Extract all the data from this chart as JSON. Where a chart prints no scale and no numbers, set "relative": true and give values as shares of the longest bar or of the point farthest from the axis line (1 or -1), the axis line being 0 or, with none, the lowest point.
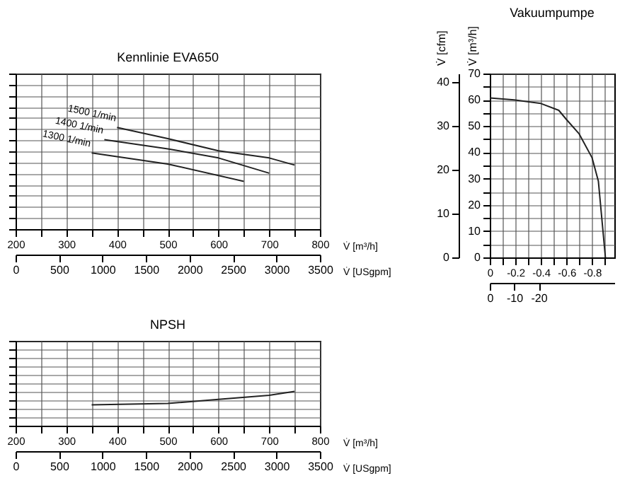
{
  "chart_data": [
    {
      "type": "line",
      "title": "Kennlinie EVA650",
      "xlabel": "V̇ [m³/h]",
      "x2label": "V̇ [USgpm]",
      "relative": true,
      "xlim": [
        200,
        800
      ],
      "xticks": [
        200,
        {
          "value": 250,
          "label": null
        },
        300,
        {
          "value": 350,
          "label": null
        },
        400,
        {
          "value": 450,
          "label": null
        },
        500,
        {
          "value": 550,
          "label": null
        },
        600,
        {
          "value": 650,
          "label": null
        },
        700,
        {
          "value": 750,
          "label": null
        },
        800
      ],
      "x2lim": [
        0,
        3500
      ],
      "x2ticks": [
        0,
        500,
        1000,
        1500,
        2000,
        2500,
        3000,
        3500
      ],
      "grid": true,
      "legend": false,
      "series": [
        {
          "name": "1500 1/min",
          "color": "#222222",
          "x": [
            400,
            500,
            600,
            700,
            750
          ],
          "values": [
            1.0,
            0.89,
            0.77,
            0.7,
            0.63
          ]
        },
        {
          "name": "1400 1/min",
          "color": "#222222",
          "x": [
            375,
            500,
            600,
            700
          ],
          "values": [
            0.88,
            0.79,
            0.7,
            0.55
          ]
        },
        {
          "name": "1300 1/min",
          "color": "#222222",
          "x": [
            350,
            500,
            650
          ],
          "values": [
            0.75,
            0.64,
            0.47
          ]
        }
      ]
    },
    {
      "type": "line",
      "title": "Vakuumpumpe",
      "ylabel": "V̇ [m³/h]",
      "y2label": "V̇ [cfm]",
      "xlim": [
        0,
        -0.975
      ],
      "xticks": [
        0,
        {
          "value": -0.1,
          "label": null
        },
        -0.2,
        {
          "value": -0.3,
          "label": null
        },
        -0.4,
        {
          "value": -0.5,
          "label": null
        },
        -0.6,
        {
          "value": -0.7,
          "label": null
        },
        -0.8,
        {
          "value": -0.9,
          "label": null
        }
      ],
      "x2lim": [
        0,
        -51
      ],
      "x2ticks": [
        0,
        -10,
        -20
      ],
      "ylim": [
        0,
        70
      ],
      "yticks": [
        0,
        {
          "value": 5,
          "label": null
        },
        10,
        {
          "value": 15,
          "label": null
        },
        20,
        {
          "value": 25,
          "label": null
        },
        30,
        {
          "value": 35,
          "label": null
        },
        40,
        {
          "value": 45,
          "label": null
        },
        50,
        {
          "value": 55,
          "label": null
        },
        60,
        {
          "value": 65,
          "label": null
        },
        70
      ],
      "y2lim": [
        0,
        41.9
      ],
      "y2ticks": [
        0,
        10,
        20,
        30,
        40
      ],
      "grid": true,
      "legend": false,
      "series": [
        {
          "color": "#222222",
          "x": [
            0,
            -0.19,
            -0.4,
            -0.54,
            -0.6,
            -0.7,
            -0.8,
            -0.85,
            -0.905
          ],
          "values": [
            60.7,
            60,
            58.6,
            56,
            52.5,
            47,
            38,
            29,
            0
          ]
        }
      ]
    },
    {
      "type": "line",
      "title": "NPSH",
      "xlabel": "V̇ [m³/h]",
      "x2label": "V̇ [USgpm]",
      "relative": true,
      "xlim": [
        200,
        800
      ],
      "xticks": [
        200,
        {
          "value": 250,
          "label": null
        },
        300,
        {
          "value": 350,
          "label": null
        },
        400,
        {
          "value": 450,
          "label": null
        },
        500,
        {
          "value": 550,
          "label": null
        },
        600,
        {
          "value": 650,
          "label": null
        },
        700,
        {
          "value": 750,
          "label": null
        },
        800
      ],
      "x2lim": [
        0,
        3500
      ],
      "x2ticks": [
        0,
        500,
        1000,
        1500,
        2000,
        2500,
        3000,
        3500
      ],
      "grid": true,
      "legend": false,
      "series": [
        {
          "color": "#222222",
          "x": [
            350,
            500,
            600,
            700,
            750
          ],
          "values": [
            0.61,
            0.65,
            0.77,
            0.89,
            1.0
          ]
        }
      ]
    }
  ]
}
